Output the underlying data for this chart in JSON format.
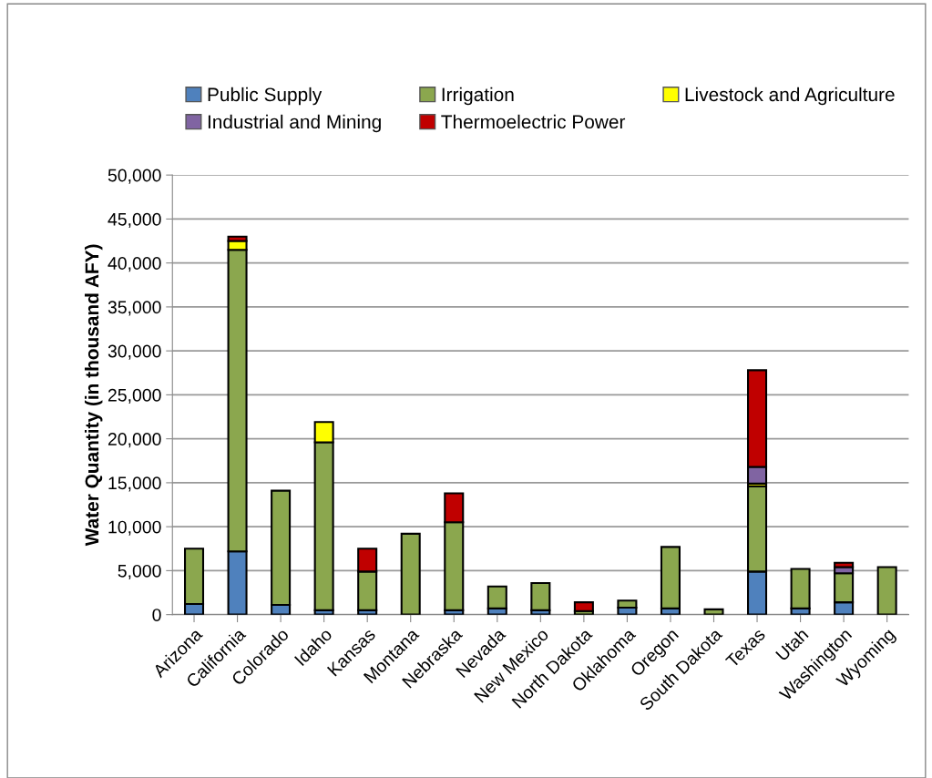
{
  "chart_data": {
    "type": "bar",
    "stacked": true,
    "ylabel": "Water Quantity (in thousand AFY)",
    "categories": [
      "Arizona",
      "California",
      "Colorado",
      "Idaho",
      "Kansas",
      "Montana",
      "Nebraska",
      "Nevada",
      "New Mexico",
      "North Dakota",
      "Oklahoma",
      "Oregon",
      "South Dakota",
      "Texas",
      "Utah",
      "Washington",
      "Wyoming"
    ],
    "series": [
      {
        "name": "Public Supply",
        "color": "#4f81bd",
        "values": [
          1200,
          7200,
          1100,
          500,
          500,
          0,
          500,
          700,
          500,
          0,
          800,
          700,
          0,
          4900,
          700,
          1400,
          0
        ]
      },
      {
        "name": "Irrigation",
        "color": "#8ba74e",
        "values": [
          6300,
          34300,
          13000,
          19100,
          4400,
          9200,
          10000,
          2500,
          3100,
          400,
          800,
          7000,
          600,
          9700,
          4500,
          3300,
          5400
        ]
      },
      {
        "name": "Livestock and Agriculture",
        "color": "#ffff00",
        "values": [
          0,
          1000,
          0,
          2300,
          0,
          0,
          0,
          0,
          0,
          0,
          0,
          0,
          0,
          300,
          0,
          0,
          0
        ]
      },
      {
        "name": "Industrial and Mining",
        "color": "#8064a2",
        "values": [
          0,
          0,
          0,
          0,
          0,
          0,
          0,
          0,
          0,
          0,
          0,
          0,
          0,
          1900,
          0,
          700,
          0
        ]
      },
      {
        "name": "Thermoelectric Power",
        "color": "#c00000",
        "values": [
          0,
          500,
          0,
          0,
          2600,
          0,
          3300,
          0,
          0,
          1000,
          0,
          0,
          0,
          11000,
          0,
          500,
          0
        ]
      }
    ],
    "ylim": [
      0,
      50000
    ],
    "yticks": [
      {
        "value": 0,
        "label": "0"
      },
      {
        "value": 5000,
        "label": "5,000"
      },
      {
        "value": 10000,
        "label": "10,000"
      },
      {
        "value": 15000,
        "label": "15,000"
      },
      {
        "value": 20000,
        "label": "20,000"
      },
      {
        "value": 25000,
        "label": "25,000"
      },
      {
        "value": 30000,
        "label": "30,000"
      },
      {
        "value": 35000,
        "label": "35,000"
      },
      {
        "value": 40000,
        "label": "40,000"
      },
      {
        "value": 45000,
        "label": "45,000"
      },
      {
        "value": 50000,
        "label": "50,000"
      }
    ],
    "grid": "y",
    "legend": "top"
  }
}
